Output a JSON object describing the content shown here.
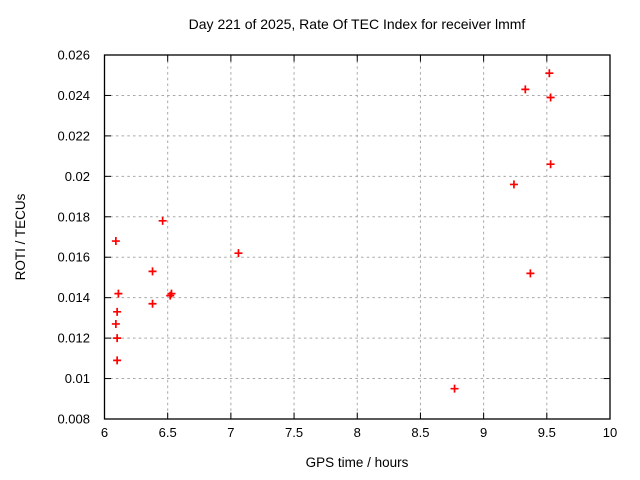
{
  "figure": {
    "title": "Day 221 of 2025, Rate Of TEC Index for receiver lmmf"
  },
  "chart_data": {
    "type": "scatter",
    "title": "Day 221 of 2025, Rate Of TEC Index for receiver lmmf",
    "xlabel": "GPS time / hours",
    "ylabel": "ROTI / TECUs",
    "xlim": [
      6,
      10
    ],
    "ylim": [
      0.008,
      0.026
    ],
    "xtick_values": [
      6,
      6.5,
      7,
      7.5,
      8,
      8.5,
      9,
      9.5,
      10
    ],
    "xtick_labels": [
      "6",
      "6.5",
      "7",
      "7.5",
      "8",
      "8.5",
      "9",
      "9.5",
      "10"
    ],
    "ytick_values": [
      0.008,
      0.01,
      0.012,
      0.014,
      0.016,
      0.018,
      0.02,
      0.022,
      0.024,
      0.026
    ],
    "ytick_labels": [
      "0.008",
      "0.01",
      "0.012",
      "0.014",
      "0.016",
      "0.018",
      "0.02",
      "0.022",
      "0.024",
      "0.026"
    ],
    "grid": true,
    "legend": "none",
    "marker": "plus",
    "colors": {
      "marker": "#ff0000",
      "grid": "#a8a8a8",
      "axis": "#000000",
      "background": "#ffffff"
    },
    "series": [
      {
        "name": "ROTI",
        "points": [
          [
            6.09,
            0.0168
          ],
          [
            6.11,
            0.0142
          ],
          [
            6.1,
            0.0133
          ],
          [
            6.09,
            0.0127
          ],
          [
            6.1,
            0.012
          ],
          [
            6.1,
            0.0109
          ],
          [
            6.38,
            0.0153
          ],
          [
            6.38,
            0.0137
          ],
          [
            6.46,
            0.0178
          ],
          [
            6.52,
            0.0141
          ],
          [
            6.53,
            0.0142
          ],
          [
            7.06,
            0.0162
          ],
          [
            8.77,
            0.0095
          ],
          [
            9.24,
            0.0196
          ],
          [
            9.33,
            0.0243
          ],
          [
            9.37,
            0.0152
          ],
          [
            9.52,
            0.0251
          ],
          [
            9.53,
            0.0239
          ],
          [
            9.53,
            0.0206
          ]
        ]
      }
    ]
  }
}
